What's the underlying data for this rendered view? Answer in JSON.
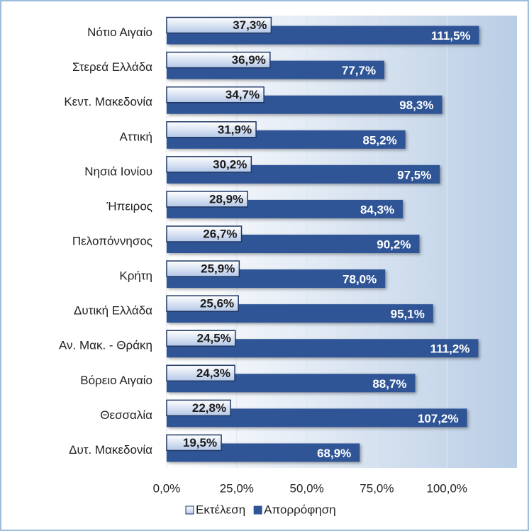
{
  "chart_data": {
    "type": "hbar",
    "categories": [
      "Νότιο Αιγαίο",
      "Στερεά Ελλάδα",
      "Κεντ. Μακεδονία",
      "Αττική",
      "Νησιά Ιονίου",
      "Ήπειρος",
      "Πελοπόννησος",
      "Κρήτη",
      "Δυτική Ελλάδα",
      "Αν. Μακ. - Θράκη",
      "Βόρειο Αιγαίο",
      "Θεσσαλία",
      "Δυτ. Μακεδονία"
    ],
    "series": [
      {
        "name": "Εκτέλεση",
        "color": "#dce6f2",
        "values": [
          37.3,
          36.9,
          34.7,
          31.9,
          30.2,
          28.9,
          26.7,
          25.9,
          25.6,
          24.5,
          24.3,
          22.8,
          19.5
        ],
        "value_labels": [
          "37,3%",
          "36,9%",
          "34,7%",
          "31,9%",
          "30,2%",
          "28,9%",
          "26,7%",
          "25,9%",
          "25,6%",
          "24,5%",
          "24,3%",
          "22,8%",
          "19,5%"
        ]
      },
      {
        "name": "Απορρόφηση",
        "color": "#2f5597",
        "values": [
          111.5,
          77.7,
          98.3,
          85.2,
          97.5,
          84.3,
          90.2,
          78.0,
          95.1,
          111.2,
          88.7,
          107.2,
          68.9
        ],
        "value_labels": [
          "111,5%",
          "77,7%",
          "98,3%",
          "85,2%",
          "97,5%",
          "84,3%",
          "90,2%",
          "78,0%",
          "95,1%",
          "111,2%",
          "88,7%",
          "107,2%",
          "68,9%"
        ]
      }
    ],
    "xlim": [
      0,
      125
    ],
    "xticks": [
      {
        "value": 0,
        "label": "0,0%"
      },
      {
        "value": 25,
        "label": "25,0%"
      },
      {
        "value": 50,
        "label": "50,0%"
      },
      {
        "value": 75,
        "label": "75,0%"
      },
      {
        "value": 100,
        "label": "100,0%"
      }
    ],
    "grid": true,
    "legend": "bottom"
  }
}
